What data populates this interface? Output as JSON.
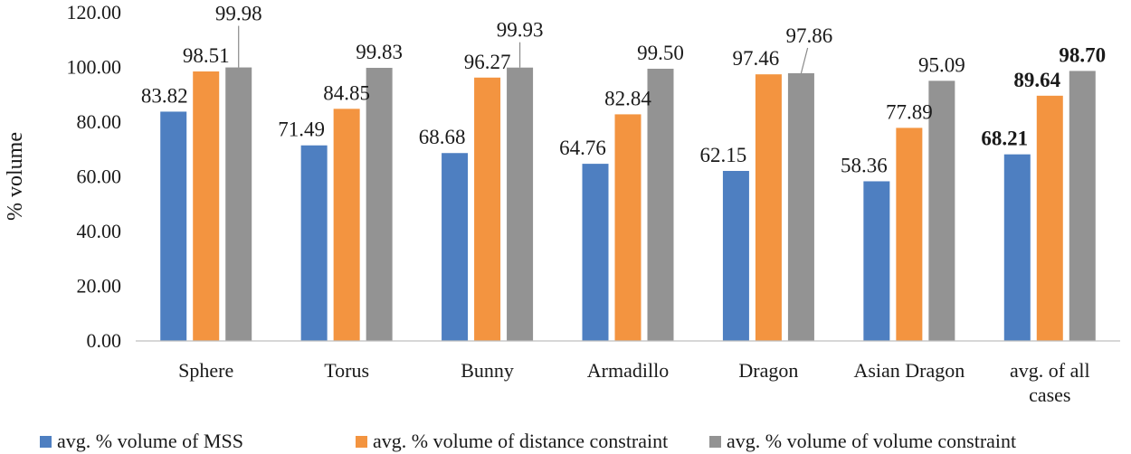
{
  "chart_data": {
    "type": "bar",
    "title": "",
    "xlabel": "",
    "ylabel": "% volume",
    "ylim": [
      0,
      120
    ],
    "yticks": [
      "0.00",
      "20.00",
      "40.00",
      "60.00",
      "80.00",
      "100.00",
      "120.00"
    ],
    "grid": false,
    "legend_position": "bottom",
    "categories": [
      "Sphere",
      "Torus",
      "Bunny",
      "Armadillo",
      "Dragon",
      "Asian Dragon",
      "avg. of all cases"
    ],
    "category_lines": [
      [
        "Sphere"
      ],
      [
        "Torus"
      ],
      [
        "Bunny"
      ],
      [
        "Armadillo"
      ],
      [
        "Dragon"
      ],
      [
        "Asian Dragon"
      ],
      [
        "avg. of all",
        "cases"
      ]
    ],
    "series": [
      {
        "name": "avg. % volume of MSS",
        "color": "#4e7fc1",
        "values": [
          83.82,
          71.49,
          68.68,
          64.76,
          62.15,
          58.36,
          68.21
        ],
        "labels": [
          "83.82",
          "71.49",
          "68.68",
          "64.76",
          "62.15",
          "58.36",
          "68.21"
        ]
      },
      {
        "name": "avg. % volume of distance constraint",
        "color": "#f39440",
        "values": [
          98.51,
          84.85,
          96.27,
          82.84,
          97.46,
          77.89,
          89.64
        ],
        "labels": [
          "98.51",
          "84.85",
          "96.27",
          "82.84",
          "97.46",
          "77.89",
          "89.64"
        ]
      },
      {
        "name": "avg. % volume of volume constraint",
        "color": "#939393",
        "values": [
          99.98,
          99.83,
          99.93,
          99.5,
          97.86,
          95.09,
          98.7
        ],
        "labels": [
          "99.98",
          "99.83",
          "99.93",
          "99.50",
          "97.86",
          "95.09",
          "98.70"
        ]
      }
    ],
    "bold_category": "avg. of all cases"
  }
}
